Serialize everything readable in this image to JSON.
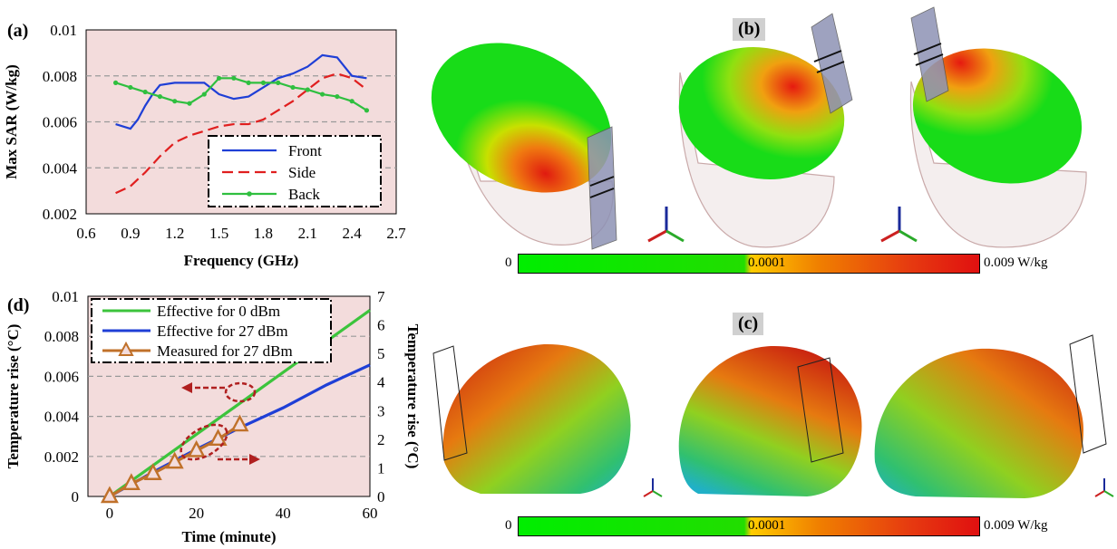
{
  "panels": {
    "a_label": "(a)",
    "b_label": "(b)",
    "c_label": "(c)",
    "d_label": "(d)"
  },
  "colorbar": {
    "min_label": "0",
    "mid_label": "0.0001",
    "max_label": "0.009 W/kg"
  },
  "colors": {
    "front": "#1f3fd6",
    "side": "#e01f1f",
    "back": "#2fbf3f",
    "effective_0": "#3cc43c",
    "effective_27": "#1f3fd6",
    "measured_27": "#c0712a",
    "plot_bg": "#f3dcdc",
    "grid": "#999999"
  },
  "chart_data": [
    {
      "type": "line",
      "xlabel": "Frequency (GHz)",
      "ylabel": "Max SAR (W/kg)",
      "xlim": [
        0.6,
        2.7
      ],
      "ylim": [
        0.002,
        0.01
      ],
      "xticks": [
        "0.6",
        "0.9",
        "1.2",
        "1.5",
        "1.8",
        "2.1",
        "2.4",
        "2.7"
      ],
      "yticks": [
        "0.002",
        "0.004",
        "0.006",
        "0.008",
        "0.01"
      ],
      "grid": "horizontal dashed",
      "legend_position": "bottom-right",
      "series": [
        {
          "name": "Front",
          "style": "solid",
          "x": [
            0.8,
            0.85,
            0.9,
            0.95,
            1.0,
            1.05,
            1.1,
            1.2,
            1.3,
            1.4,
            1.5,
            1.6,
            1.7,
            1.8,
            1.9,
            2.0,
            2.1,
            2.2,
            2.3,
            2.4,
            2.5
          ],
          "y": [
            0.0059,
            0.0058,
            0.0057,
            0.0061,
            0.0067,
            0.0072,
            0.0076,
            0.0077,
            0.0077,
            0.0077,
            0.0072,
            0.007,
            0.0071,
            0.0075,
            0.0079,
            0.0081,
            0.0084,
            0.0089,
            0.0088,
            0.008,
            0.0079
          ]
        },
        {
          "name": "Side",
          "style": "dashed",
          "x": [
            0.8,
            0.9,
            1.0,
            1.1,
            1.2,
            1.3,
            1.4,
            1.5,
            1.6,
            1.7,
            1.8,
            1.9,
            2.0,
            2.1,
            2.2,
            2.3,
            2.4,
            2.5
          ],
          "y": [
            0.0029,
            0.0032,
            0.0038,
            0.0045,
            0.0051,
            0.0054,
            0.0056,
            0.0058,
            0.0059,
            0.0059,
            0.0061,
            0.0065,
            0.0069,
            0.0074,
            0.0079,
            0.0081,
            0.0079,
            0.0074
          ]
        },
        {
          "name": "Back",
          "style": "solid-marker",
          "x": [
            0.8,
            0.9,
            1.0,
            1.1,
            1.2,
            1.3,
            1.4,
            1.5,
            1.6,
            1.7,
            1.8,
            1.9,
            2.0,
            2.1,
            2.2,
            2.3,
            2.4,
            2.5
          ],
          "y": [
            0.0077,
            0.0075,
            0.0073,
            0.0071,
            0.0069,
            0.0068,
            0.0072,
            0.0079,
            0.0079,
            0.0077,
            0.0077,
            0.0077,
            0.0075,
            0.0074,
            0.0072,
            0.0071,
            0.0069,
            0.0065
          ]
        }
      ]
    },
    {
      "type": "line",
      "xlabel": "Time (minute)",
      "ylabel": "Temperature rise (°C)",
      "ylabel_right": "Temperature rise (°C)",
      "xlim": [
        -5,
        60
      ],
      "ylim": [
        0,
        0.01
      ],
      "ylim_right": [
        0,
        7
      ],
      "xticks": [
        "0",
        "20",
        "40",
        "60"
      ],
      "yticks": [
        "0",
        "0.002",
        "0.004",
        "0.006",
        "0.008",
        "0.01"
      ],
      "yticks_right": [
        "0",
        "1",
        "2",
        "3",
        "4",
        "5",
        "6",
        "7"
      ],
      "grid": "horizontal dashed",
      "legend_position": "top-left",
      "series": [
        {
          "name": "Effective for 0 dBm",
          "axis": "left",
          "x": [
            0,
            60
          ],
          "y": [
            0,
            0.0093
          ]
        },
        {
          "name": "Effective for 27 dBm",
          "axis": "right",
          "x": [
            0,
            10,
            20,
            30,
            40,
            50,
            60
          ],
          "y": [
            0,
            0.85,
            1.65,
            2.4,
            3.1,
            3.9,
            4.6
          ]
        },
        {
          "name": "Measured for 27 dBm",
          "axis": "right",
          "marker": "triangle",
          "x": [
            0,
            5,
            10,
            15,
            20,
            25,
            30
          ],
          "y": [
            0,
            0.45,
            0.8,
            1.2,
            1.6,
            2.0,
            2.5
          ]
        }
      ]
    }
  ]
}
